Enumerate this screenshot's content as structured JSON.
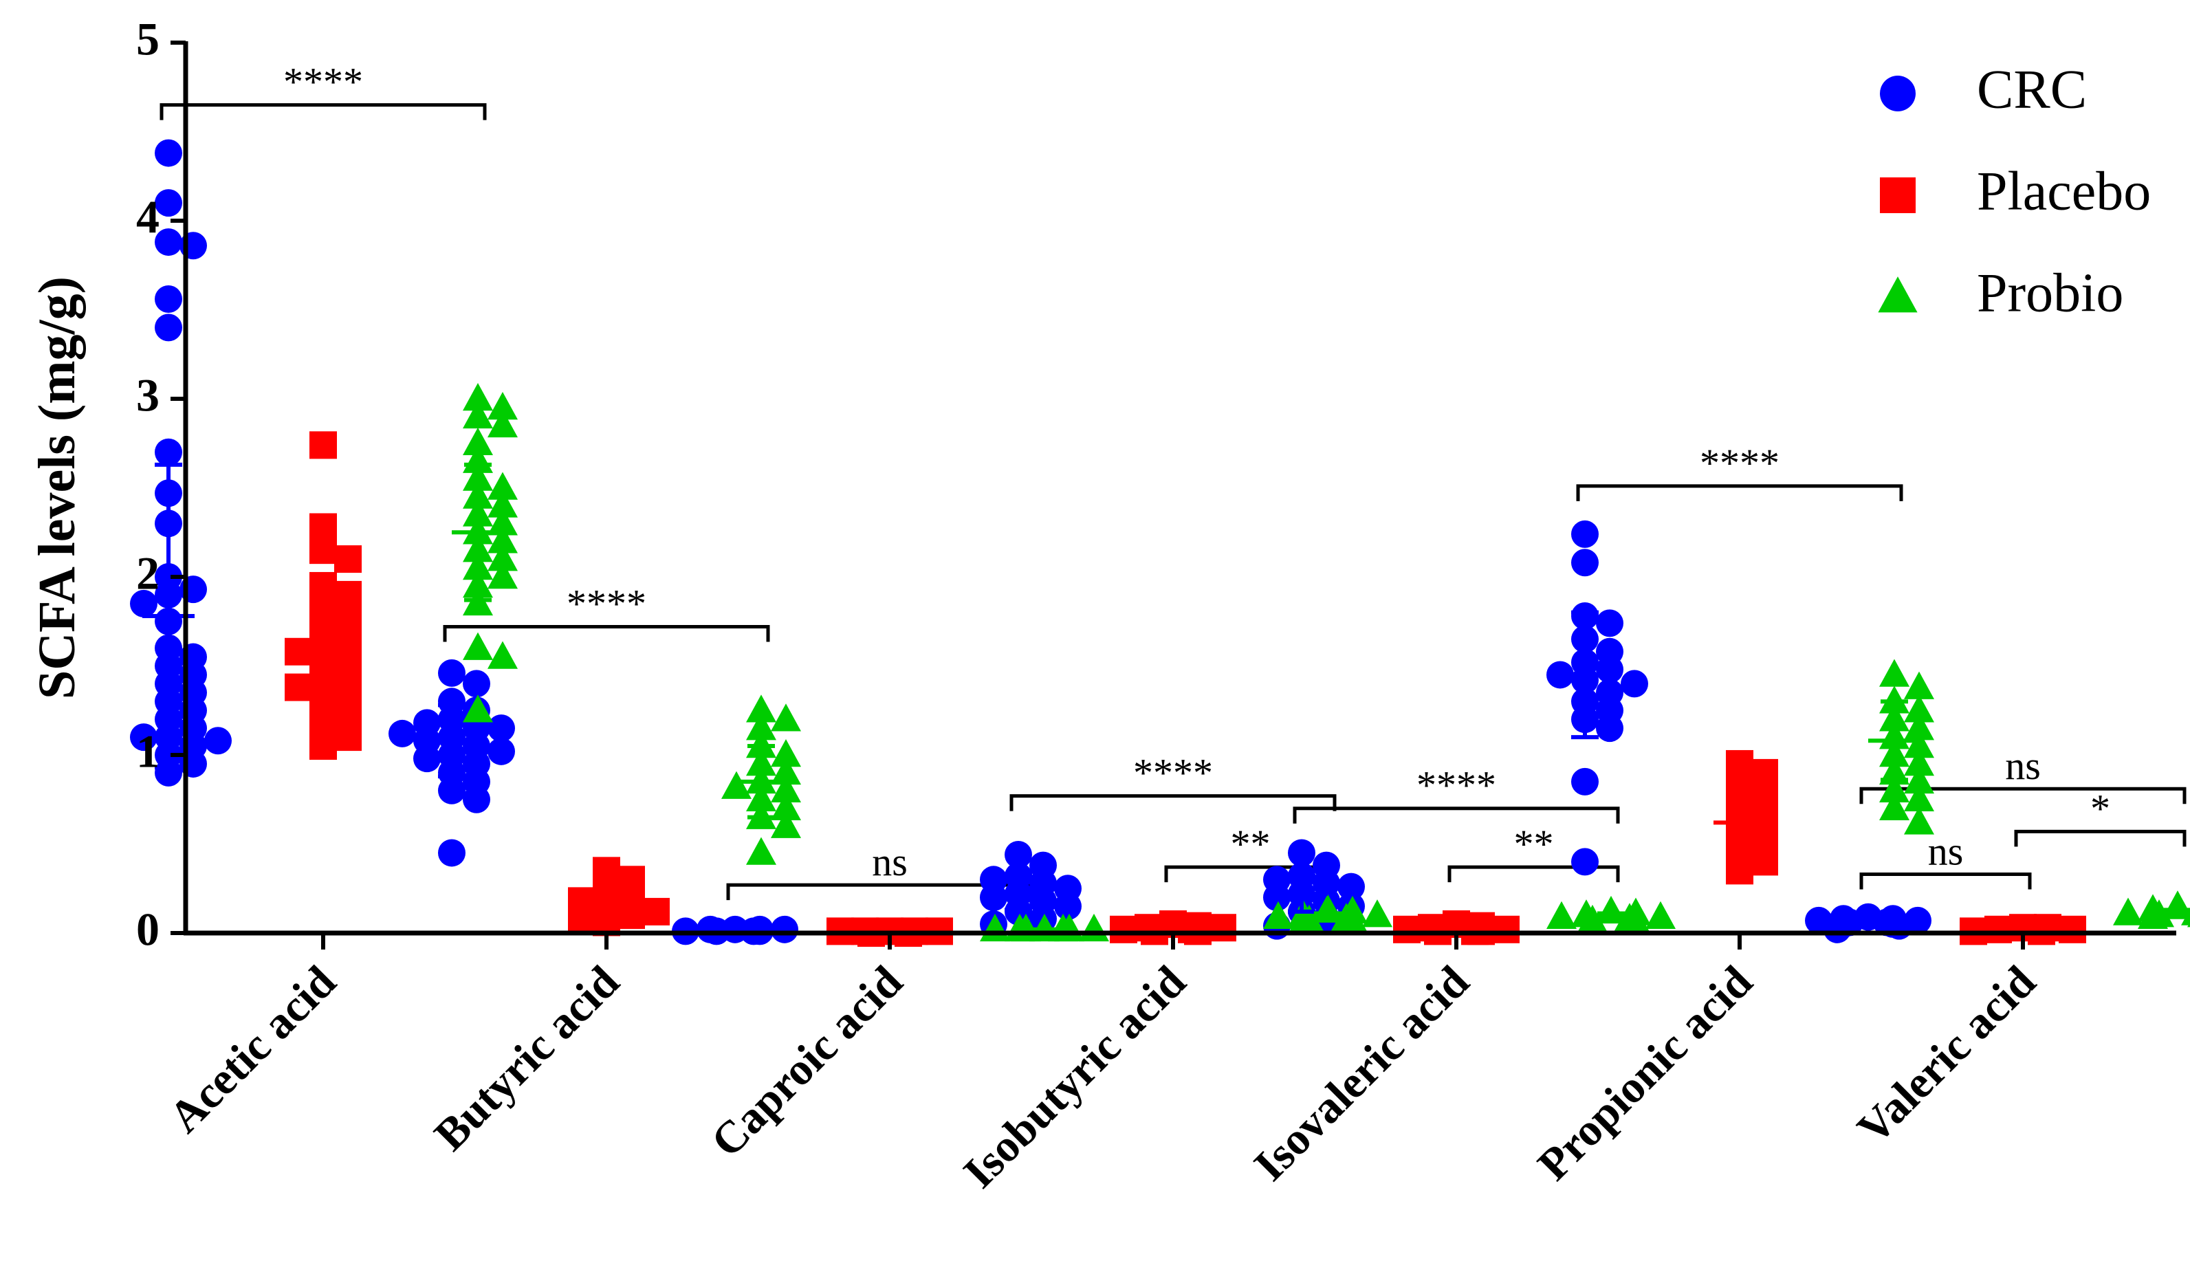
{
  "chart_data": {
    "type": "scatter",
    "title": "",
    "xlabel": "",
    "ylabel": "SCFA levels (mg/g)",
    "ylim": [
      0,
      5
    ],
    "yticks": [
      0,
      1,
      2,
      3,
      4,
      5
    ],
    "categories": [
      "Acetic acid",
      "Butyric acid",
      "Caproic acid",
      "Isobutyric acid",
      "Isovaleric acid",
      "Propionic acid",
      "Valeric acid"
    ],
    "legend_position": "top-right",
    "series": [
      {
        "name": "CRC",
        "marker": "circle",
        "color": "#0000ff",
        "points": [
          [
            4.38,
            4.1,
            3.88,
            3.86,
            3.56,
            3.4,
            2.7,
            2.47,
            2.3,
            2.0,
            1.93,
            1.9,
            1.85,
            1.75,
            1.6,
            1.55,
            1.5,
            1.45,
            1.4,
            1.35,
            1.3,
            1.25,
            1.2,
            1.15,
            1.1,
            1.1,
            1.08,
            1.05,
            1.0,
            0.95,
            0.9
          ],
          [
            1.46,
            1.4,
            1.3,
            1.25,
            1.2,
            1.18,
            1.15,
            1.15,
            1.12,
            1.1,
            1.08,
            1.05,
            1.02,
            1.0,
            0.98,
            0.95,
            0.9,
            0.85,
            0.8,
            0.75,
            0.45
          ],
          [
            0.02,
            0.02,
            0.02,
            0.02,
            0.01,
            0.01,
            0.01,
            0.01
          ],
          [
            0.44,
            0.38,
            0.32,
            0.3,
            0.28,
            0.25,
            0.22,
            0.2,
            0.18,
            0.15,
            0.12,
            0.08,
            0.05
          ],
          [
            0.45,
            0.38,
            0.32,
            0.3,
            0.28,
            0.26,
            0.22,
            0.2,
            0.18,
            0.15,
            0.12,
            0.08,
            0.04
          ],
          [
            2.24,
            2.08,
            1.78,
            1.74,
            1.65,
            1.58,
            1.52,
            1.48,
            1.45,
            1.42,
            1.4,
            1.35,
            1.3,
            1.25,
            1.2,
            1.15,
            0.85,
            0.4
          ],
          [
            0.09,
            0.08,
            0.08,
            0.07,
            0.07,
            0.06,
            0.06,
            0.05,
            0.05,
            0.04,
            0.02
          ]
        ],
        "mean": [
          1.78,
          1.08,
          0.01,
          0.23,
          0.22,
          1.45,
          0.06
        ],
        "sd": [
          0.85,
          0.2,
          0.01,
          0.1,
          0.1,
          0.35,
          0.02
        ]
      },
      {
        "name": "Placebo",
        "marker": "square",
        "color": "#ff0000",
        "points": [
          [
            2.74,
            2.28,
            2.15,
            2.1,
            1.95,
            1.9,
            1.85,
            1.8,
            1.75,
            1.7,
            1.65,
            1.6,
            1.58,
            1.55,
            1.5,
            1.45,
            1.4,
            1.38,
            1.35,
            1.3,
            1.25,
            1.2,
            1.15,
            1.1,
            1.05
          ],
          [
            0.35,
            0.3,
            0.25,
            0.2,
            0.18,
            0.15,
            0.12,
            0.1,
            0.08,
            0.06
          ],
          [
            0.01,
            0.01,
            0.01,
            0.01,
            0.01,
            0.0,
            0.0
          ],
          [
            0.05,
            0.04,
            0.03,
            0.03,
            0.02,
            0.02,
            0.01,
            0.01
          ],
          [
            0.05,
            0.04,
            0.03,
            0.02,
            0.02,
            0.01,
            0.01,
            0.01
          ],
          [
            0.95,
            0.9,
            0.85,
            0.8,
            0.75,
            0.7,
            0.65,
            0.6,
            0.55,
            0.5,
            0.45,
            0.4,
            0.35
          ],
          [
            0.03,
            0.03,
            0.02,
            0.02,
            0.01,
            0.01
          ]
        ],
        "mean": [
          1.58,
          0.18,
          0.01,
          0.03,
          0.02,
          0.62,
          0.02
        ],
        "sd": [
          0.4,
          0.1,
          0.0,
          0.01,
          0.01,
          0.2,
          0.01
        ]
      },
      {
        "name": "Probio",
        "marker": "triangle",
        "color": "#00cc00",
        "points": [
          [
            3.0,
            2.95,
            2.9,
            2.85,
            2.75,
            2.65,
            2.55,
            2.5,
            2.45,
            2.4,
            2.35,
            2.3,
            2.25,
            2.2,
            2.15,
            2.1,
            2.05,
            2.0,
            1.95,
            1.85,
            1.6,
            1.55,
            1.25
          ],
          [
            1.25,
            1.2,
            1.15,
            1.05,
            1.0,
            0.95,
            0.9,
            0.85,
            0.82,
            0.8,
            0.75,
            0.7,
            0.65,
            0.6,
            0.45
          ],
          [
            0.02,
            0.02,
            0.02,
            0.02,
            0.02,
            0.02,
            0.02
          ],
          [
            0.13,
            0.12,
            0.1,
            0.1,
            0.09,
            0.08,
            0.07,
            0.07,
            0.06
          ],
          [
            0.12,
            0.11,
            0.1,
            0.09,
            0.09,
            0.08,
            0.07,
            0.06
          ],
          [
            1.45,
            1.38,
            1.3,
            1.25,
            1.2,
            1.15,
            1.1,
            1.05,
            1.0,
            0.95,
            0.9,
            0.85,
            0.8,
            0.75,
            0.7,
            0.62
          ],
          [
            0.15,
            0.14,
            0.13,
            0.12,
            0.11,
            0.11,
            0.1,
            0.1,
            0.09,
            0.08
          ]
        ],
        "mean": [
          2.25,
          0.85,
          0.02,
          0.09,
          0.09,
          1.08,
          0.11
        ],
        "sd": [
          0.38,
          0.2,
          0.0,
          0.02,
          0.02,
          0.22,
          0.02
        ]
      }
    ],
    "annotations": [
      {
        "category": "Acetic acid",
        "from": "CRC",
        "to": "Probio",
        "y": 4.65,
        "text": "****"
      },
      {
        "category": "Butyric acid",
        "from": "CRC",
        "to": "Probio",
        "y": 1.72,
        "text": "****"
      },
      {
        "category": "Caproic acid",
        "from": "CRC",
        "to": "Probio",
        "y": 0.27,
        "text": "ns"
      },
      {
        "category": "Isobutyric acid",
        "from": "CRC",
        "to": "Probio",
        "y": 0.77,
        "text": "****"
      },
      {
        "category": "Isobutyric acid",
        "from": "Placebo",
        "to": "Probio",
        "y": 0.37,
        "text": "**"
      },
      {
        "category": "Isovaleric acid",
        "from": "CRC",
        "to": "Probio",
        "y": 0.7,
        "text": "****"
      },
      {
        "category": "Isovaleric acid",
        "from": "Placebo",
        "to": "Probio",
        "y": 0.37,
        "text": "**"
      },
      {
        "category": "Propionic acid",
        "from": "CRC",
        "to": "Probio",
        "y": 2.51,
        "text": "****"
      },
      {
        "category": "Valeric acid",
        "from": "CRC",
        "to": "Probio",
        "y": 0.81,
        "text": "ns"
      },
      {
        "category": "Valeric acid",
        "from": "CRC",
        "to": "Placebo",
        "y": 0.33,
        "text": "ns"
      },
      {
        "category": "Valeric acid",
        "from": "Placebo",
        "to": "Probio",
        "y": 0.57,
        "text": "*"
      }
    ]
  }
}
